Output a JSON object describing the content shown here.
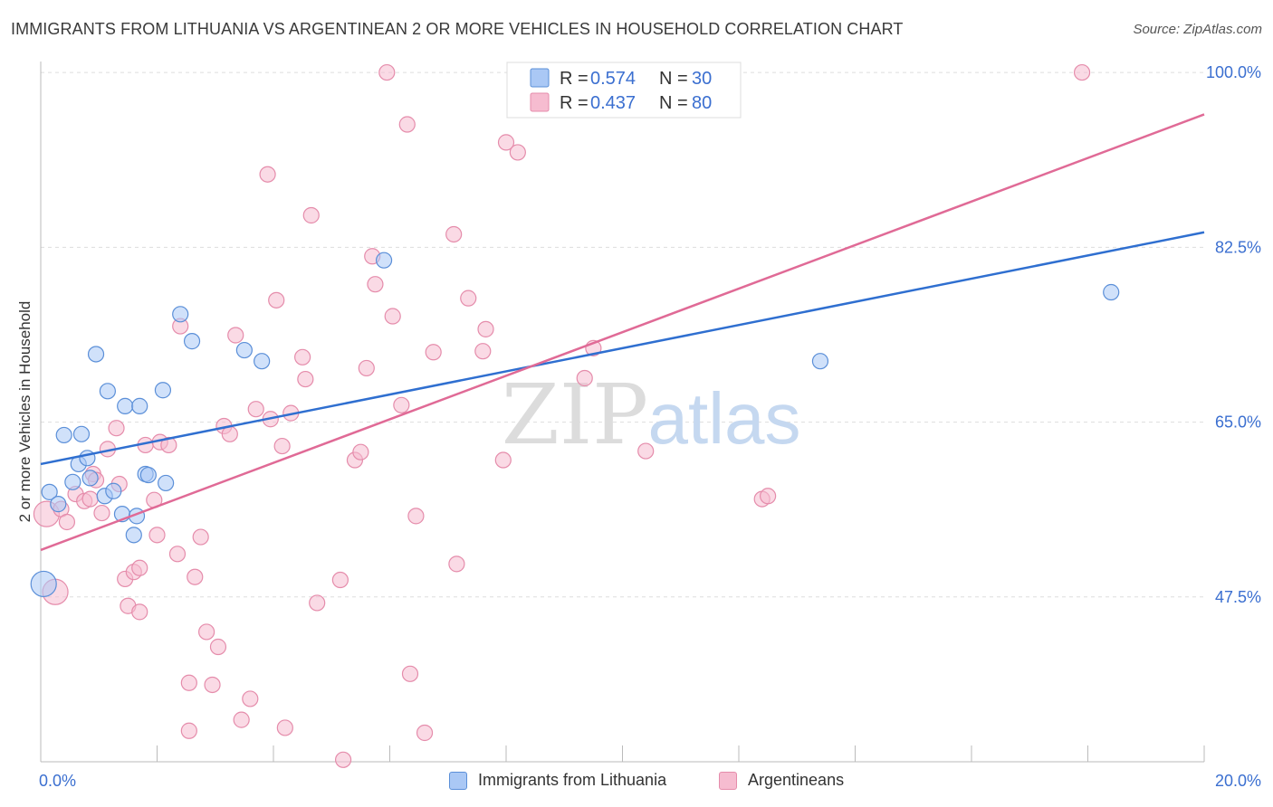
{
  "title": "IMMIGRANTS FROM LITHUANIA VS ARGENTINEAN 2 OR MORE VEHICLES IN HOUSEHOLD CORRELATION CHART",
  "source": "Source: ZipAtlas.com",
  "watermark": {
    "zip": "ZIP",
    "atlas": "atlas"
  },
  "colors": {
    "blue_line": "#2f6fd0",
    "blue_fill": "#aac8f5",
    "blue_stroke": "#5b8fd8",
    "pink_line": "#e06a96",
    "pink_fill": "#f6bcd0",
    "pink_stroke": "#e58cab",
    "value_text": "#3b6fd0",
    "grid": "#dddddd"
  },
  "legend_top": {
    "rows": [
      {
        "r_label": "R = ",
        "r_value": "0.574",
        "n_label": "N = ",
        "n_value": "30"
      },
      {
        "r_label": "R = ",
        "r_value": "0.437",
        "n_label": "N = ",
        "n_value": "80"
      }
    ]
  },
  "legend_bottom": {
    "items": [
      "Immigrants from Lithuania",
      "Argentineans"
    ]
  },
  "chart_data": {
    "type": "scatter",
    "title": "IMMIGRANTS FROM LITHUANIA VS ARGENTINEAN 2 OR MORE VEHICLES IN HOUSEHOLD CORRELATION CHART",
    "xlabel": "",
    "ylabel": "2 or more Vehicles in Household",
    "xlim": [
      0,
      20
    ],
    "ylim": [
      31,
      102
    ],
    "x_tick_labels": [
      "0.0%",
      "20.0%"
    ],
    "y_ticks": [
      47.5,
      65.0,
      82.5,
      100.0
    ],
    "y_tick_labels": [
      "47.5%",
      "65.0%",
      "82.5%",
      "100.0%"
    ],
    "series": [
      {
        "name": "Immigrants from Lithuania",
        "r": 0.574,
        "n": 30,
        "trend": {
          "x": [
            0,
            20
          ],
          "y": [
            60.8,
            84.0
          ]
        },
        "points": [
          {
            "x": 0.05,
            "y": 48.8,
            "big": true
          },
          {
            "x": 0.15,
            "y": 58.0
          },
          {
            "x": 0.3,
            "y": 56.8
          },
          {
            "x": 0.4,
            "y": 63.7
          },
          {
            "x": 0.55,
            "y": 59.0
          },
          {
            "x": 0.65,
            "y": 60.8
          },
          {
            "x": 0.7,
            "y": 63.8
          },
          {
            "x": 0.8,
            "y": 61.4
          },
          {
            "x": 0.85,
            "y": 59.4
          },
          {
            "x": 0.95,
            "y": 71.8
          },
          {
            "x": 1.1,
            "y": 57.6
          },
          {
            "x": 1.15,
            "y": 68.1
          },
          {
            "x": 1.25,
            "y": 58.1
          },
          {
            "x": 1.4,
            "y": 55.8
          },
          {
            "x": 1.45,
            "y": 66.6
          },
          {
            "x": 1.6,
            "y": 53.7
          },
          {
            "x": 1.65,
            "y": 55.6
          },
          {
            "x": 1.7,
            "y": 66.6
          },
          {
            "x": 1.8,
            "y": 59.8
          },
          {
            "x": 1.85,
            "y": 59.7
          },
          {
            "x": 2.1,
            "y": 68.2
          },
          {
            "x": 2.15,
            "y": 58.9
          },
          {
            "x": 2.4,
            "y": 75.8
          },
          {
            "x": 2.6,
            "y": 73.1
          },
          {
            "x": 3.5,
            "y": 72.2
          },
          {
            "x": 3.8,
            "y": 71.1
          },
          {
            "x": 5.9,
            "y": 81.2
          },
          {
            "x": 13.4,
            "y": 71.1
          },
          {
            "x": 18.4,
            "y": 78.0
          }
        ]
      },
      {
        "name": "Argentineans",
        "r": 0.437,
        "n": 80,
        "trend": {
          "x": [
            0,
            20
          ],
          "y": [
            52.2,
            95.8
          ]
        },
        "points": [
          {
            "x": 0.1,
            "y": 55.8,
            "big": true
          },
          {
            "x": 0.25,
            "y": 48.0,
            "big": true
          },
          {
            "x": 0.35,
            "y": 56.3
          },
          {
            "x": 0.45,
            "y": 55.0
          },
          {
            "x": 0.6,
            "y": 57.8
          },
          {
            "x": 0.75,
            "y": 57.1
          },
          {
            "x": 0.85,
            "y": 57.3
          },
          {
            "x": 0.9,
            "y": 59.8
          },
          {
            "x": 0.95,
            "y": 59.2
          },
          {
            "x": 1.05,
            "y": 55.9
          },
          {
            "x": 1.15,
            "y": 62.3
          },
          {
            "x": 1.3,
            "y": 64.4
          },
          {
            "x": 1.35,
            "y": 58.8
          },
          {
            "x": 1.45,
            "y": 49.3
          },
          {
            "x": 1.5,
            "y": 46.6
          },
          {
            "x": 1.6,
            "y": 50.0
          },
          {
            "x": 1.7,
            "y": 50.4
          },
          {
            "x": 1.7,
            "y": 46.0
          },
          {
            "x": 1.8,
            "y": 62.7
          },
          {
            "x": 1.95,
            "y": 57.2
          },
          {
            "x": 2.0,
            "y": 53.7
          },
          {
            "x": 2.05,
            "y": 63.0
          },
          {
            "x": 2.2,
            "y": 62.7
          },
          {
            "x": 2.35,
            "y": 51.8
          },
          {
            "x": 2.4,
            "y": 74.6
          },
          {
            "x": 2.55,
            "y": 38.9
          },
          {
            "x": 2.55,
            "y": 34.1
          },
          {
            "x": 2.65,
            "y": 49.5
          },
          {
            "x": 2.75,
            "y": 53.5
          },
          {
            "x": 2.85,
            "y": 44.0
          },
          {
            "x": 2.95,
            "y": 38.7
          },
          {
            "x": 3.05,
            "y": 42.5
          },
          {
            "x": 3.15,
            "y": 64.6
          },
          {
            "x": 3.25,
            "y": 63.8
          },
          {
            "x": 3.35,
            "y": 73.7
          },
          {
            "x": 3.45,
            "y": 35.2
          },
          {
            "x": 3.6,
            "y": 37.3
          },
          {
            "x": 3.7,
            "y": 66.3
          },
          {
            "x": 3.9,
            "y": 89.8
          },
          {
            "x": 3.95,
            "y": 65.3
          },
          {
            "x": 4.05,
            "y": 77.2
          },
          {
            "x": 4.15,
            "y": 62.6
          },
          {
            "x": 4.2,
            "y": 34.4
          },
          {
            "x": 4.3,
            "y": 65.9
          },
          {
            "x": 4.5,
            "y": 71.5
          },
          {
            "x": 4.55,
            "y": 69.3
          },
          {
            "x": 4.65,
            "y": 85.7
          },
          {
            "x": 4.75,
            "y": 46.9
          },
          {
            "x": 5.15,
            "y": 49.2
          },
          {
            "x": 5.2,
            "y": 31.2
          },
          {
            "x": 5.4,
            "y": 61.2
          },
          {
            "x": 5.5,
            "y": 62.0
          },
          {
            "x": 5.6,
            "y": 70.4
          },
          {
            "x": 5.7,
            "y": 81.6
          },
          {
            "x": 5.75,
            "y": 78.8
          },
          {
            "x": 5.95,
            "y": 100.0
          },
          {
            "x": 6.05,
            "y": 75.6
          },
          {
            "x": 6.2,
            "y": 66.7
          },
          {
            "x": 6.3,
            "y": 94.8
          },
          {
            "x": 6.35,
            "y": 39.8
          },
          {
            "x": 6.45,
            "y": 55.6
          },
          {
            "x": 6.6,
            "y": 33.9
          },
          {
            "x": 6.75,
            "y": 72.0
          },
          {
            "x": 7.1,
            "y": 83.8
          },
          {
            "x": 7.15,
            "y": 50.8
          },
          {
            "x": 7.35,
            "y": 77.4
          },
          {
            "x": 7.6,
            "y": 72.1
          },
          {
            "x": 7.65,
            "y": 74.3
          },
          {
            "x": 7.95,
            "y": 61.2
          },
          {
            "x": 8.0,
            "y": 93.0
          },
          {
            "x": 8.2,
            "y": 92.0
          },
          {
            "x": 9.35,
            "y": 69.4
          },
          {
            "x": 9.5,
            "y": 72.4
          },
          {
            "x": 10.4,
            "y": 62.1
          },
          {
            "x": 12.4,
            "y": 57.3
          },
          {
            "x": 12.5,
            "y": 57.6
          },
          {
            "x": 17.9,
            "y": 100.0
          }
        ]
      }
    ]
  }
}
